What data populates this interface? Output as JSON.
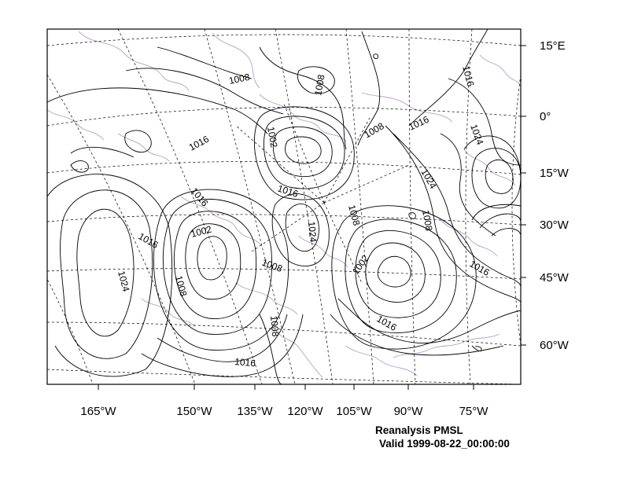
{
  "map": {
    "caption_title": "Reanalysis PMSL",
    "caption_valid": "Valid 1999-08-22_00:00:00",
    "lon_labels": [
      "165°W",
      "150°W",
      "135°W",
      "120°W",
      "105°W",
      "90°W",
      "75°W"
    ],
    "lat_labels": [
      "15°E",
      "0°",
      "15°W",
      "30°W",
      "45°W",
      "60°W"
    ],
    "contour_labels": [
      "1008",
      "1008",
      "1016",
      "1002",
      "1016",
      "1008",
      "1024",
      "1016",
      "1024",
      "1008",
      "1016",
      "1016",
      "1002",
      "1024",
      "1008",
      "1008",
      "1016",
      "1008",
      "1002",
      "1016",
      "1016",
      "1016",
      "1008",
      "1024"
    ],
    "colors": {
      "coastline": "#b49fd0",
      "contour": "#000000",
      "grid": "#000000",
      "frame": "#000000"
    }
  }
}
